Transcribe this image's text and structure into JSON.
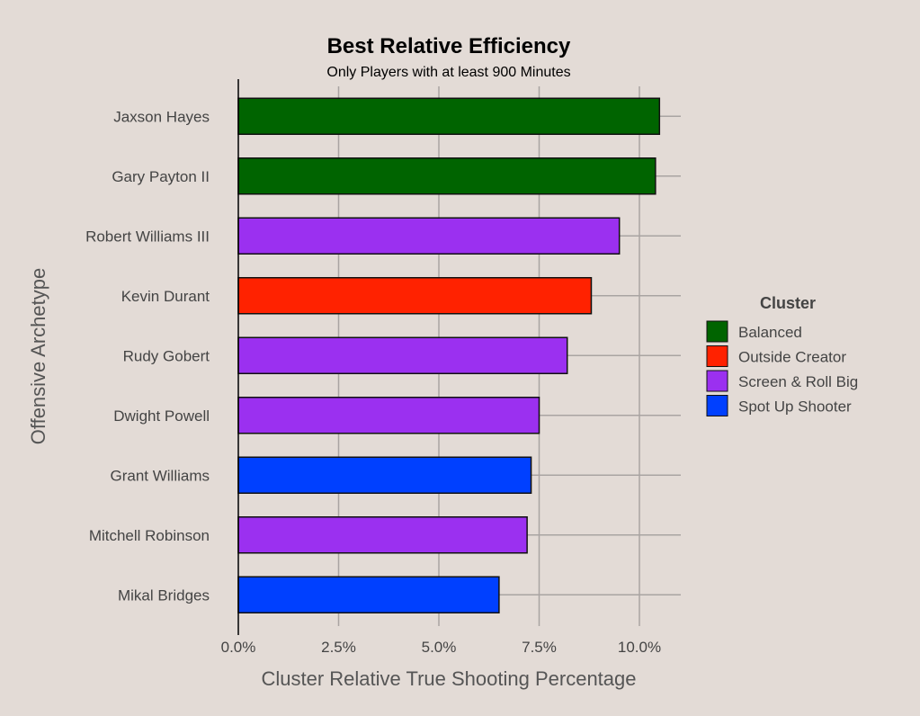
{
  "colors": {
    "background": "#e3dbd6",
    "grid": "#a9a4a2",
    "axis": "#000000",
    "bar_border": "#111111",
    "text": "#444444",
    "title": "#000000"
  },
  "chart_data": {
    "type": "bar",
    "orientation": "horizontal",
    "title": "Best Relative Efficiency",
    "subtitle": "Only Players with at least 900 Minutes",
    "xlabel": "Cluster Relative True Shooting Percentage",
    "ylabel": "Offensive Archetype",
    "xlim": [
      0,
      0.11
    ],
    "x_ticks": [
      0,
      0.025,
      0.05,
      0.075,
      0.1
    ],
    "x_tick_labels": [
      "0.0%",
      "2.5%",
      "5.0%",
      "7.5%",
      "10.0%"
    ],
    "grid": true,
    "legend": {
      "title": "Cluster",
      "placement": "right",
      "entries": [
        {
          "name": "Balanced",
          "color": "#006400"
        },
        {
          "name": "Outside Creator",
          "color": "#ff2200"
        },
        {
          "name": "Screen & Roll Big",
          "color": "#9b30f0"
        },
        {
          "name": "Spot Up Shooter",
          "color": "#0040ff"
        }
      ]
    },
    "categories": [
      "Jaxson Hayes",
      "Gary Payton II",
      "Robert Williams III",
      "Kevin Durant",
      "Rudy Gobert",
      "Dwight Powell",
      "Grant Williams",
      "Mitchell Robinson",
      "Mikal Bridges"
    ],
    "values": [
      0.105,
      0.104,
      0.095,
      0.088,
      0.082,
      0.075,
      0.073,
      0.072,
      0.065
    ],
    "clusters": [
      "Balanced",
      "Balanced",
      "Screen & Roll Big",
      "Outside Creator",
      "Screen & Roll Big",
      "Screen & Roll Big",
      "Spot Up Shooter",
      "Screen & Roll Big",
      "Spot Up Shooter"
    ]
  }
}
